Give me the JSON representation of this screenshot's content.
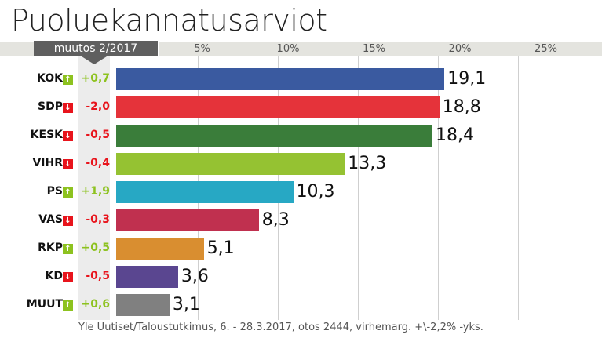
{
  "chart_data": {
    "type": "bar",
    "orientation": "horizontal",
    "title": "Puoluekannatusarviot",
    "change_header": "muutos 2/2017",
    "xlim": [
      0,
      25
    ],
    "ticks": [
      "5%",
      "10%",
      "15%",
      "20%",
      "25%"
    ],
    "tick_values": [
      5,
      10,
      15,
      20,
      25
    ],
    "grid": true,
    "categories": [
      "KOK",
      "SDP",
      "KESK",
      "VIHR",
      "PS",
      "VAS",
      "RKP",
      "KD",
      "MUUT"
    ],
    "values": [
      19.1,
      18.8,
      18.4,
      13.3,
      10.3,
      8.3,
      5.1,
      3.6,
      3.1
    ],
    "value_labels": [
      "19,1",
      "18,8",
      "18,4",
      "13,3",
      "10,3",
      "8,3",
      "5,1",
      "3,6",
      "3,1"
    ],
    "changes": [
      "+0,7",
      "-2,0",
      "-0,5",
      "-0,4",
      "+1,9",
      "-0,3",
      "+0,5",
      "-0,5",
      "+0,6"
    ],
    "change_direction": [
      "up",
      "down",
      "down",
      "down",
      "up",
      "down",
      "up",
      "down",
      "up"
    ],
    "colors": [
      "#3a5aa0",
      "#e5333a",
      "#3a7d3a",
      "#95c232",
      "#27a8c4",
      "#c0304f",
      "#d98e30",
      "#5a4690",
      "#808080"
    ],
    "up_color": "#8dc21f",
    "down_color": "#e8141c",
    "source": "Yle Uutiset/Taloustutkimus, 6. - 28.3.2017, otos 2444, virhemarg. +\\-2,2% -yks."
  }
}
